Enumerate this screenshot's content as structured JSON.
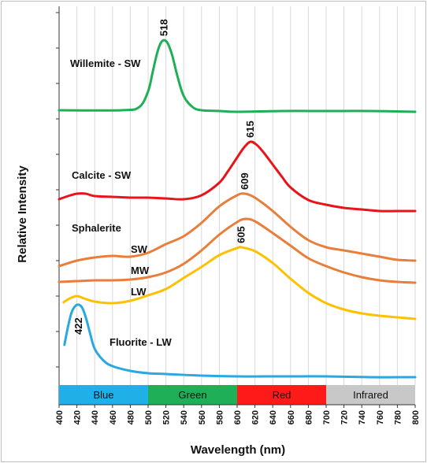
{
  "chart_data": {
    "type": "line",
    "xlabel": "Wavelength (nm)",
    "ylabel": "Relative Intensity",
    "xlim": [
      400,
      800
    ],
    "x_ticks": [
      400,
      420,
      440,
      460,
      480,
      500,
      520,
      540,
      560,
      580,
      600,
      620,
      640,
      660,
      680,
      700,
      720,
      740,
      760,
      780,
      800
    ],
    "grid": "vertical",
    "bands": [
      {
        "label": "Blue",
        "from": 400,
        "to": 500,
        "color": "#1FB0E8"
      },
      {
        "label": "Green",
        "from": 500,
        "to": 600,
        "color": "#1FAF57"
      },
      {
        "label": "Red",
        "from": 600,
        "to": 700,
        "color": "#FF1A1A"
      },
      {
        "label": "Infrared",
        "from": 700,
        "to": 800,
        "color": "#C8C8C8"
      }
    ],
    "series": [
      {
        "name": "Willemite - SW",
        "color": "#1FAF57",
        "peak_label": "518",
        "peak_x": 518,
        "x": [
          400,
          470,
          490,
          500,
          505,
          510,
          514,
          518,
          522,
          527,
          533,
          540,
          550,
          560,
          580,
          600,
          650,
          700,
          750,
          800
        ],
        "y": [
          140,
          140,
          136,
          116,
          92,
          68,
          55,
          51,
          55,
          70,
          97,
          122,
          136,
          140,
          141,
          142,
          141,
          141,
          141,
          142
        ]
      },
      {
        "name": "Calcite - SW",
        "color": "#E8141A",
        "peak_label": "615",
        "peak_x": 615,
        "x": [
          400,
          410,
          420,
          430,
          440,
          460,
          480,
          500,
          520,
          540,
          560,
          580,
          590,
          600,
          608,
          615,
          622,
          630,
          640,
          650,
          660,
          680,
          700,
          720,
          740,
          760,
          780,
          800
        ],
        "y": [
          253,
          249,
          246,
          246,
          249,
          250,
          251,
          251,
          252,
          253,
          248,
          232,
          217,
          200,
          187,
          180,
          184,
          194,
          209,
          224,
          238,
          254,
          260,
          264,
          266,
          268,
          268,
          268
        ]
      },
      {
        "name": "Sphalerite SW",
        "color": "#E97E3B",
        "peak_label": "609",
        "peak_x": 609,
        "x": [
          400,
          420,
          440,
          460,
          480,
          500,
          520,
          540,
          560,
          580,
          600,
          609,
          620,
          640,
          660,
          680,
          700,
          720,
          740,
          760,
          780,
          800
        ],
        "y": [
          338,
          331,
          327,
          325,
          326,
          321,
          310,
          300,
          283,
          262,
          248,
          246,
          251,
          268,
          288,
          305,
          314,
          318,
          322,
          326,
          330,
          331
        ]
      },
      {
        "name": "Sphalerite MW",
        "color": "#E97E3B",
        "x": [
          400,
          420,
          440,
          460,
          480,
          500,
          520,
          540,
          560,
          580,
          600,
          609,
          620,
          640,
          660,
          680,
          700,
          720,
          740,
          760,
          780,
          800
        ],
        "y": [
          358,
          357,
          356,
          356,
          355,
          352,
          346,
          335,
          318,
          298,
          282,
          278,
          281,
          296,
          312,
          328,
          338,
          346,
          352,
          356,
          358,
          359
        ]
      },
      {
        "name": "Sphalerite LW",
        "color": "#FFC000",
        "peak_label": "605",
        "peak_x": 605,
        "x": [
          405,
          412,
          420,
          428,
          440,
          460,
          480,
          500,
          520,
          540,
          560,
          580,
          600,
          605,
          620,
          640,
          660,
          680,
          700,
          720,
          740,
          760,
          780,
          800
        ],
        "y": [
          384,
          379,
          376,
          379,
          383,
          385,
          382,
          375,
          367,
          353,
          339,
          324,
          315,
          314,
          319,
          334,
          354,
          372,
          385,
          393,
          398,
          401,
          403,
          405
        ]
      },
      {
        "name": "Fluorite - LW",
        "color": "#29A9E0",
        "peak_label": "422",
        "peak_x": 422,
        "x": [
          406,
          410,
          414,
          418,
          422,
          426,
          430,
          435,
          440,
          450,
          460,
          480,
          500,
          520,
          560,
          600,
          650,
          700,
          750,
          800
        ],
        "y": [
          438,
          415,
          397,
          389,
          387,
          391,
          403,
          424,
          443,
          458,
          465,
          471,
          474,
          475,
          477,
          478,
          478,
          478,
          479,
          479
        ]
      }
    ],
    "labels": [
      {
        "text": "Willemite - SW"
      },
      {
        "text": "Calcite - SW"
      },
      {
        "text": "Sphalerite"
      },
      {
        "text": "SW"
      },
      {
        "text": "MW"
      },
      {
        "text": "LW"
      },
      {
        "text": "Fluorite - LW"
      }
    ]
  }
}
